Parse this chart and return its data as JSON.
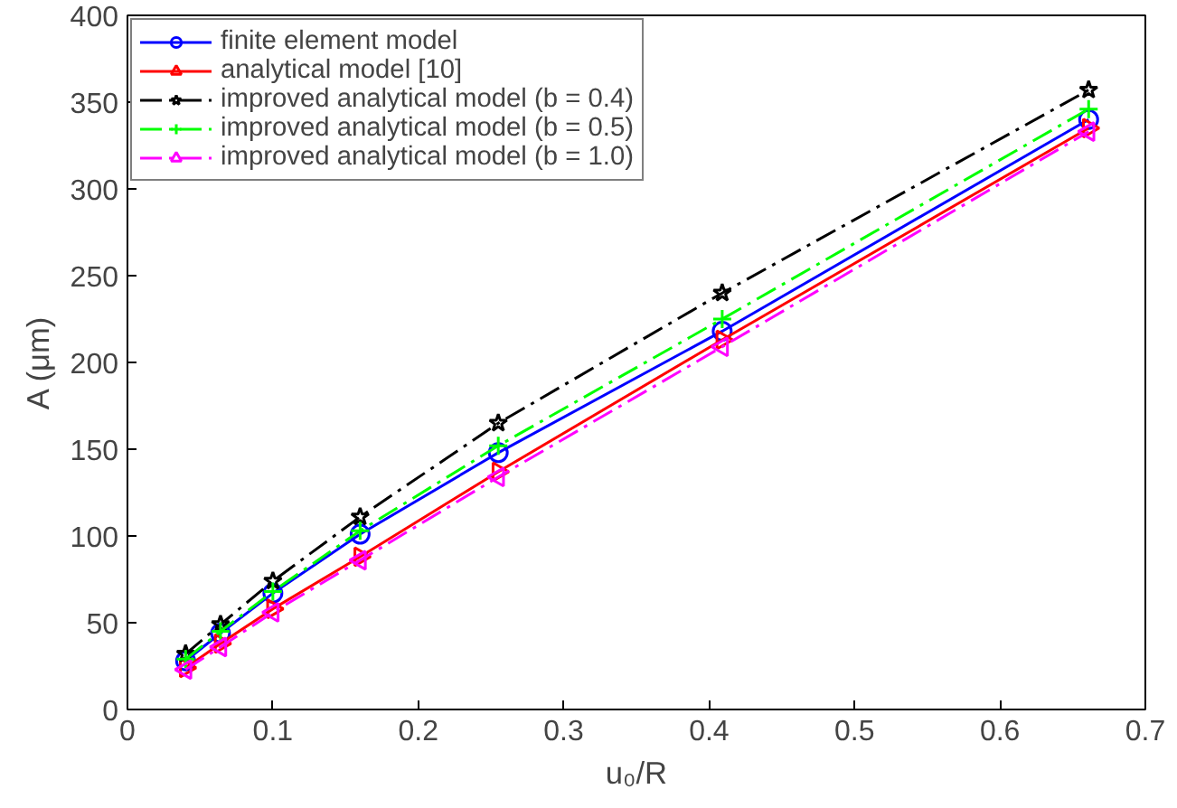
{
  "chart_data": {
    "type": "line",
    "xlabel": "u₀/R",
    "ylabel": "A (μm)",
    "xlim": [
      0,
      0.7
    ],
    "ylim": [
      0,
      400
    ],
    "xticks": [
      0,
      0.1,
      0.2,
      0.3,
      0.4,
      0.5,
      0.6,
      0.7
    ],
    "yticks": [
      0,
      50,
      100,
      150,
      200,
      250,
      300,
      350,
      400
    ],
    "grid": false,
    "legend": "top left",
    "x": [
      0.04,
      0.064,
      0.1,
      0.16,
      0.255,
      0.409,
      0.661
    ],
    "series": [
      {
        "name": "finite element model",
        "color": "#0000ff",
        "marker": "circle",
        "line_style": "solid",
        "values": [
          28,
          44,
          67,
          101,
          148,
          218,
          340
        ]
      },
      {
        "name": "analytical model [10]",
        "color": "#ff0000",
        "marker": "triangle_right",
        "line_style": "solid",
        "values": [
          24,
          38,
          58,
          88,
          137,
          213,
          335
        ]
      },
      {
        "name": "improved analytical model (b = 0.4)",
        "color": "#000000",
        "marker": "star",
        "line_style": "dashdot",
        "values": [
          32,
          49,
          74,
          111,
          165,
          240,
          357
        ]
      },
      {
        "name": "improved analytical model (b = 0.5)",
        "color": "#00ff00",
        "marker": "cross",
        "line_style": "dashdot",
        "values": [
          29,
          45,
          68,
          103,
          152,
          225,
          346
        ]
      },
      {
        "name": "improved analytical model (b = 1.0)",
        "color": "#ff00ff",
        "marker": "triangle_left",
        "line_style": "dashdot",
        "values": [
          23,
          36,
          56,
          86,
          134,
          209,
          333
        ]
      }
    ]
  }
}
